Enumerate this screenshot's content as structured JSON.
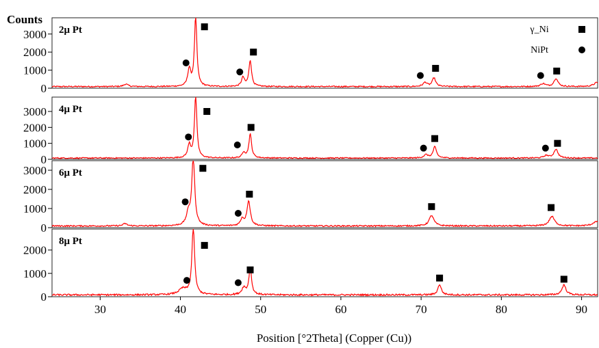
{
  "chart_data": {
    "type": "line",
    "ylabel": "Counts",
    "xlabel": "Position [°2Theta] (Copper (Cu))",
    "xlim": [
      24,
      92
    ],
    "xticks": [
      30,
      40,
      50,
      60,
      70,
      80,
      90
    ],
    "line_color": "#ff0000",
    "legend": {
      "position": "top-right",
      "items": [
        {
          "label": "γ_Ni",
          "marker": "square"
        },
        {
          "label": "NiPt",
          "marker": "circle"
        }
      ]
    },
    "panels": [
      {
        "label": "2μ Pt",
        "ylim": [
          0,
          3900
        ],
        "yticks": [
          0,
          1000,
          2000,
          3000
        ],
        "baseline": 90,
        "peaks": [
          {
            "x": 33.2,
            "h": 140,
            "w": 0.3
          },
          {
            "x": 41.1,
            "h": 950,
            "w": 0.22
          },
          {
            "x": 41.9,
            "h": 3900,
            "w": 0.18
          },
          {
            "x": 47.8,
            "h": 500,
            "w": 0.22
          },
          {
            "x": 48.7,
            "h": 1450,
            "w": 0.2
          },
          {
            "x": 70.5,
            "h": 230,
            "w": 0.3
          },
          {
            "x": 71.6,
            "h": 480,
            "w": 0.25
          },
          {
            "x": 85.2,
            "h": 160,
            "w": 0.35
          },
          {
            "x": 86.8,
            "h": 450,
            "w": 0.3
          },
          {
            "x": 91.9,
            "h": 220,
            "w": 0.45
          }
        ],
        "markers": [
          {
            "type": "square",
            "x": 43.0,
            "y": 3400
          },
          {
            "type": "circle",
            "x": 40.7,
            "y": 1400
          },
          {
            "type": "square",
            "x": 49.1,
            "y": 2000
          },
          {
            "type": "circle",
            "x": 47.4,
            "y": 900
          },
          {
            "type": "square",
            "x": 71.8,
            "y": 1100
          },
          {
            "type": "circle",
            "x": 69.9,
            "y": 700
          },
          {
            "type": "square",
            "x": 86.9,
            "y": 950
          },
          {
            "type": "circle",
            "x": 84.9,
            "y": 700
          }
        ]
      },
      {
        "label": "4μ Pt",
        "ylim": [
          0,
          3900
        ],
        "yticks": [
          0,
          1000,
          2000,
          3000
        ],
        "baseline": 80,
        "peaks": [
          {
            "x": 41.1,
            "h": 800,
            "w": 0.22
          },
          {
            "x": 41.9,
            "h": 3900,
            "w": 0.18
          },
          {
            "x": 47.9,
            "h": 350,
            "w": 0.22
          },
          {
            "x": 48.7,
            "h": 1500,
            "w": 0.2
          },
          {
            "x": 70.6,
            "h": 200,
            "w": 0.3
          },
          {
            "x": 71.7,
            "h": 700,
            "w": 0.25
          },
          {
            "x": 85.6,
            "h": 150,
            "w": 0.35
          },
          {
            "x": 86.8,
            "h": 550,
            "w": 0.3
          }
        ],
        "markers": [
          {
            "type": "square",
            "x": 43.3,
            "y": 3000
          },
          {
            "type": "circle",
            "x": 41.0,
            "y": 1400
          },
          {
            "type": "square",
            "x": 48.8,
            "y": 2000
          },
          {
            "type": "circle",
            "x": 47.1,
            "y": 900
          },
          {
            "type": "square",
            "x": 71.7,
            "y": 1300
          },
          {
            "type": "circle",
            "x": 70.3,
            "y": 700
          },
          {
            "type": "square",
            "x": 87.0,
            "y": 1000
          },
          {
            "type": "circle",
            "x": 85.5,
            "y": 700
          }
        ]
      },
      {
        "label": "6μ Pt",
        "ylim": [
          0,
          3500
        ],
        "yticks": [
          0,
          1000,
          2000,
          3000
        ],
        "baseline": 90,
        "peaks": [
          {
            "x": 33.1,
            "h": 120,
            "w": 0.3
          },
          {
            "x": 41.0,
            "h": 600,
            "w": 0.3
          },
          {
            "x": 41.6,
            "h": 3500,
            "w": 0.22
          },
          {
            "x": 47.7,
            "h": 350,
            "w": 0.25
          },
          {
            "x": 48.5,
            "h": 1300,
            "w": 0.25
          },
          {
            "x": 71.3,
            "h": 550,
            "w": 0.35
          },
          {
            "x": 86.3,
            "h": 500,
            "w": 0.4
          },
          {
            "x": 91.8,
            "h": 220,
            "w": 0.5
          }
        ],
        "markers": [
          {
            "type": "square",
            "x": 42.8,
            "y": 3100
          },
          {
            "type": "circle",
            "x": 40.6,
            "y": 1350
          },
          {
            "type": "square",
            "x": 48.6,
            "y": 1750
          },
          {
            "type": "circle",
            "x": 47.2,
            "y": 750
          },
          {
            "type": "square",
            "x": 71.3,
            "y": 1100
          },
          {
            "type": "square",
            "x": 86.2,
            "y": 1050
          }
        ]
      },
      {
        "label": "8μ Pt",
        "ylim": [
          0,
          2900
        ],
        "yticks": [
          0,
          1000,
          2000
        ],
        "baseline": 80,
        "peaks": [
          {
            "x": 40.3,
            "h": 250,
            "w": 0.6
          },
          {
            "x": 41.6,
            "h": 2900,
            "w": 0.2
          },
          {
            "x": 47.9,
            "h": 300,
            "w": 0.3
          },
          {
            "x": 48.7,
            "h": 1150,
            "w": 0.2
          },
          {
            "x": 72.3,
            "h": 450,
            "w": 0.25
          },
          {
            "x": 87.8,
            "h": 430,
            "w": 0.3
          }
        ],
        "markers": [
          {
            "type": "square",
            "x": 43.0,
            "y": 2200
          },
          {
            "type": "circle",
            "x": 40.8,
            "y": 700
          },
          {
            "type": "square",
            "x": 48.7,
            "y": 1150
          },
          {
            "type": "circle",
            "x": 47.2,
            "y": 600
          },
          {
            "type": "square",
            "x": 72.3,
            "y": 800
          },
          {
            "type": "square",
            "x": 87.8,
            "y": 750
          }
        ]
      }
    ]
  }
}
